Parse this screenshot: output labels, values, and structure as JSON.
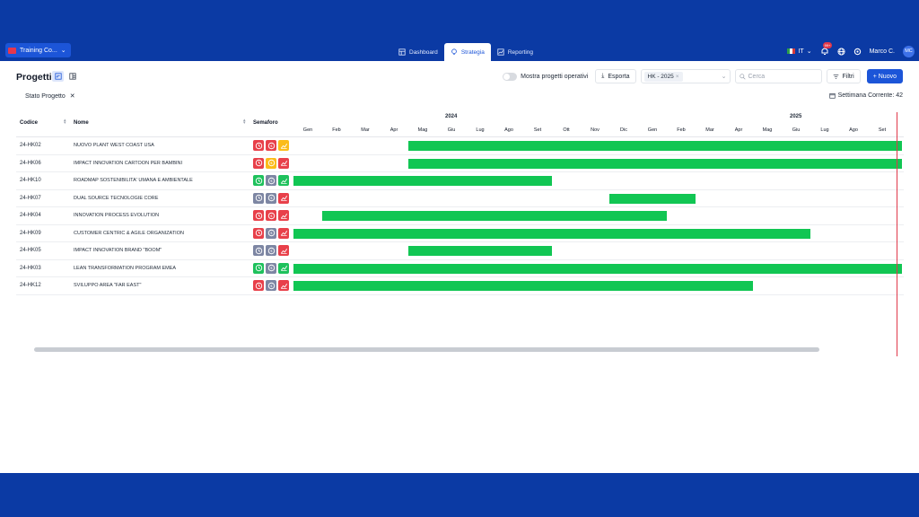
{
  "workspace": {
    "name": "Training Co..."
  },
  "tabs": [
    {
      "label": "Dashboard",
      "icon": "dashboard-icon"
    },
    {
      "label": "Strategia",
      "icon": "lightbulb-icon"
    },
    {
      "label": "Reporting",
      "icon": "chart-icon"
    }
  ],
  "header": {
    "lang": "IT",
    "notifications": "99+",
    "user": "Marco C.",
    "initials": "MC"
  },
  "page": {
    "title": "Progetti",
    "toggle_label": "Mostra progetti operativi",
    "export_label": "Esporta",
    "select_value": "HK - 2025",
    "search_placeholder": "Cerca",
    "filters_label": "Filtri",
    "new_label": "+ Nuovo",
    "filter_tag": "Stato Progetto",
    "week_label": "Settimana Corrente: 42"
  },
  "table": {
    "col_code": "Codice",
    "col_name": "Nome",
    "col_sem": "Semaforo",
    "years": [
      "2024",
      "2025"
    ],
    "months": [
      "Gen",
      "Feb",
      "Mar",
      "Apr",
      "Mag",
      "Giu",
      "Lug",
      "Ago",
      "Set",
      "Ott",
      "Nov",
      "Dic",
      "Gen",
      "Feb",
      "Mar",
      "Apr",
      "Mag",
      "Giu",
      "Lug",
      "Ago",
      "Set"
    ]
  },
  "rows": [
    {
      "code": "24-HK02",
      "name": "NUOVO PLANT WEST COAST USA",
      "sem": [
        "red",
        "red",
        "yellow"
      ],
      "start": 4,
      "end": 21.2
    },
    {
      "code": "24-HK06",
      "name": "IMPACT INNOVATION CARTOON PER BAMBINI",
      "sem": [
        "red",
        "yellow",
        "red"
      ],
      "start": 4,
      "end": 21.2
    },
    {
      "code": "24-HK10",
      "name": "ROADMAP SOSTENIBILITA' UMANA E AMBIENTALE",
      "sem": [
        "green",
        "gray",
        "green"
      ],
      "start": 0,
      "end": 9
    },
    {
      "code": "24-HK07",
      "name": "DUAL SOURCE TECNOLOGIE CORE",
      "sem": [
        "gray",
        "gray",
        "red"
      ],
      "start": 11,
      "end": 14
    },
    {
      "code": "24-HK04",
      "name": "INNOVATION PROCESS EVOLUTION",
      "sem": [
        "red",
        "red",
        "red"
      ],
      "start": 1,
      "end": 13
    },
    {
      "code": "24-HK09",
      "name": "CUSTOMER CENTRIC & AGILE ORGANIZATION",
      "sem": [
        "red",
        "gray",
        "red"
      ],
      "start": 0,
      "end": 18
    },
    {
      "code": "24-HK05",
      "name": "IMPACT INNOVATION BRAND \"BOOM\"",
      "sem": [
        "gray",
        "gray",
        "red"
      ],
      "start": 4,
      "end": 9
    },
    {
      "code": "24-HK03",
      "name": "LEAN TRANSFORMATION PROGRAM EMEA",
      "sem": [
        "green",
        "gray",
        "green"
      ],
      "start": 0,
      "end": 21.2
    },
    {
      "code": "24-HK12",
      "name": "SVILUPPO AREA \"FAR EAST\"",
      "sem": [
        "red",
        "gray",
        "red"
      ],
      "start": 0,
      "end": 16
    }
  ]
}
